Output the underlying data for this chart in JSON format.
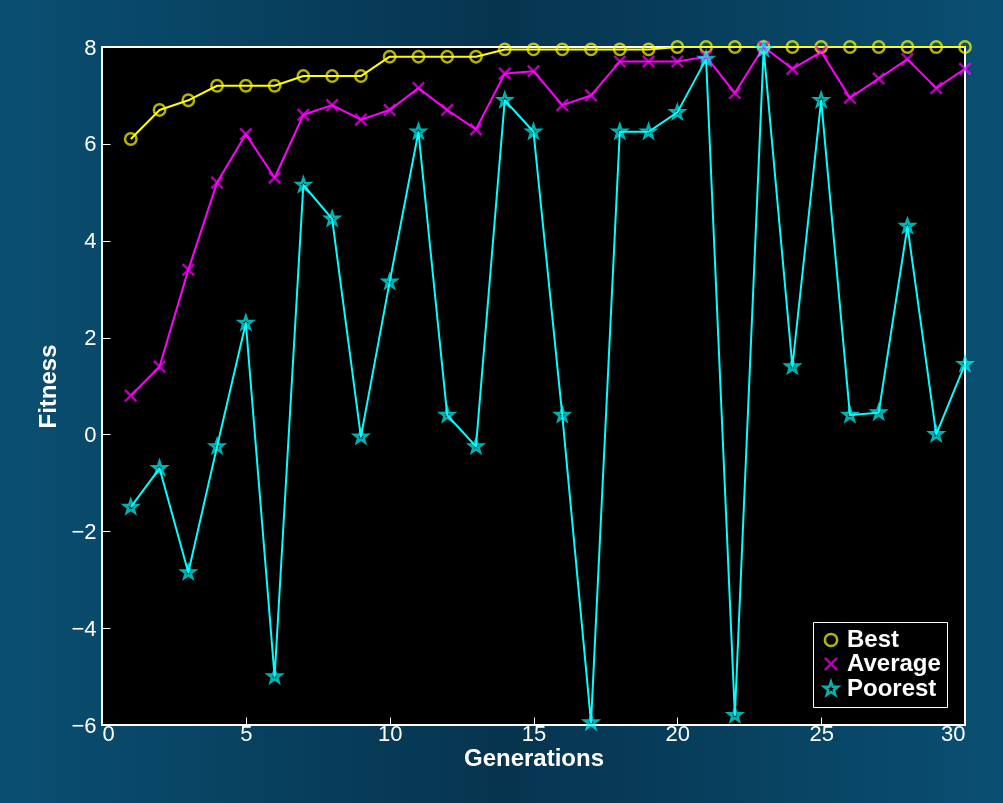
{
  "chart_data": {
    "type": "line",
    "xlabel": "Generations",
    "ylabel": "Fitness",
    "x": [
      1,
      2,
      3,
      4,
      5,
      6,
      7,
      8,
      9,
      10,
      11,
      12,
      13,
      14,
      15,
      16,
      17,
      18,
      19,
      20,
      21,
      22,
      23,
      24,
      25,
      26,
      27,
      28,
      29,
      30
    ],
    "series": [
      {
        "name": "Best",
        "color": "#ffff00",
        "marker": "circle",
        "values": [
          6.1,
          6.7,
          6.9,
          7.2,
          7.2,
          7.2,
          7.4,
          7.4,
          7.4,
          7.8,
          7.8,
          7.8,
          7.8,
          7.95,
          7.95,
          7.95,
          7.95,
          7.95,
          7.95,
          8,
          8,
          8,
          8,
          8,
          8,
          8,
          8,
          8,
          8,
          8
        ]
      },
      {
        "name": "Average",
        "color": "#ff00ff",
        "marker": "cross",
        "values": [
          0.8,
          1.4,
          3.4,
          5.2,
          6.2,
          5.3,
          6.6,
          6.8,
          6.5,
          6.7,
          7.15,
          6.7,
          6.3,
          7.45,
          7.5,
          6.8,
          7,
          7.7,
          7.7,
          7.7,
          7.8,
          7.05,
          8,
          7.55,
          7.9,
          6.95,
          7.35,
          7.75,
          7.15,
          7.55
        ]
      },
      {
        "name": "Poorest",
        "color": "#00ffff",
        "marker": "star",
        "values": [
          -1.5,
          -0.7,
          -2.85,
          -0.25,
          2.3,
          -5,
          5.15,
          4.45,
          -0.05,
          3.15,
          6.25,
          0.4,
          -0.25,
          6.9,
          6.25,
          0.4,
          -5.95,
          6.25,
          6.25,
          6.65,
          7.75,
          -5.8,
          7.95,
          1.4,
          6.9,
          0.4,
          0.45,
          4.3,
          0,
          1.45
        ]
      }
    ],
    "xlim": [
      0,
      30
    ],
    "xticks": [
      0,
      5,
      10,
      15,
      20,
      25,
      30
    ],
    "ylim": [
      -6,
      8
    ],
    "yticks": [
      -6,
      -4,
      -2,
      0,
      2,
      4,
      6,
      8
    ],
    "grid": false,
    "legend": "bottom right"
  }
}
